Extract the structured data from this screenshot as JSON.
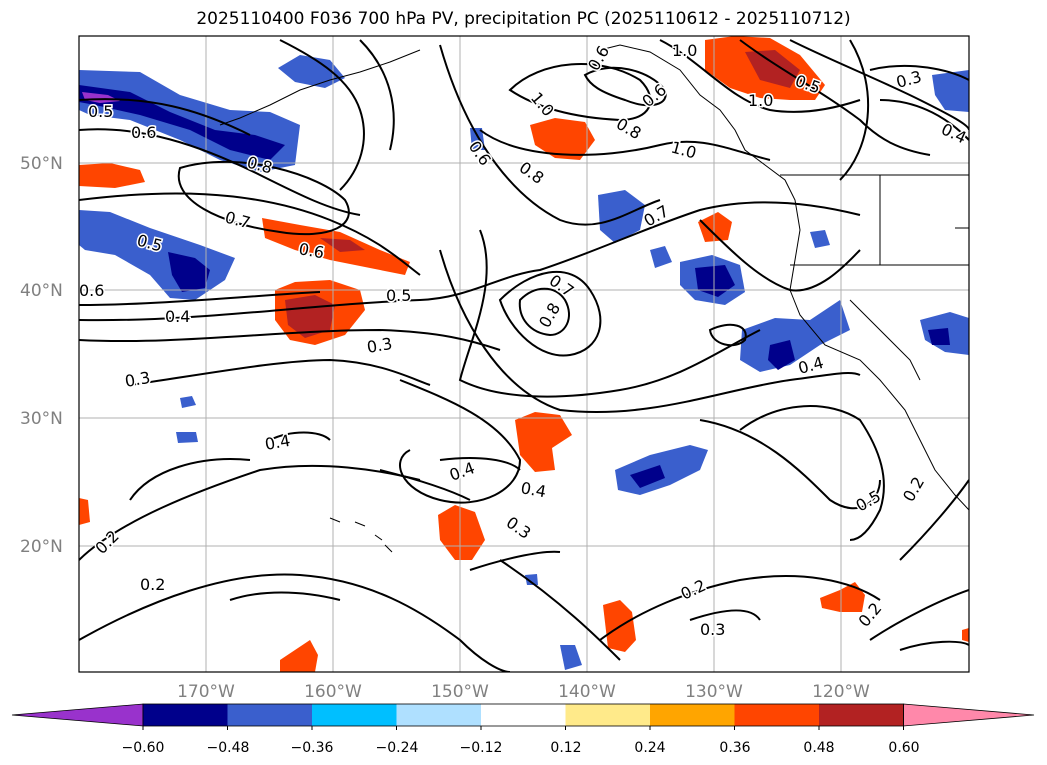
{
  "title": "2025110400 F036 700 hPa PV, precipitation PC (2025110612 - 2025110712)",
  "map": {
    "lat_labels": [
      "50°N",
      "40°N",
      "30°N",
      "20°N"
    ],
    "lon_labels": [
      "170°W",
      "160°W",
      "150°W",
      "140°W",
      "130°W",
      "120°W"
    ],
    "contour_labels": [
      {
        "text": "1.0"
      },
      {
        "text": "0.5"
      },
      {
        "text": "0.3"
      },
      {
        "text": "0.4"
      },
      {
        "text": "1.0"
      },
      {
        "text": "0.6"
      },
      {
        "text": "0.8"
      },
      {
        "text": "0.6"
      },
      {
        "text": "0.5"
      },
      {
        "text": "0.8"
      },
      {
        "text": "1.0"
      },
      {
        "text": "0.6"
      },
      {
        "text": "0.8"
      },
      {
        "text": "0.6"
      },
      {
        "text": "1.0"
      },
      {
        "text": "0.7"
      },
      {
        "text": "0.5"
      },
      {
        "text": "0.6"
      },
      {
        "text": "0.7"
      },
      {
        "text": "0.6"
      },
      {
        "text": "0.5"
      },
      {
        "text": "0.4"
      },
      {
        "text": "0.7"
      },
      {
        "text": "0.8"
      },
      {
        "text": "0.3"
      },
      {
        "text": "0.3"
      },
      {
        "text": "0.4"
      },
      {
        "text": "0.4"
      },
      {
        "text": "0.4"
      },
      {
        "text": "0.3"
      },
      {
        "text": "0.4"
      },
      {
        "text": "0.5"
      },
      {
        "text": "0.2"
      },
      {
        "text": "0.2"
      },
      {
        "text": "0.2"
      },
      {
        "text": "0.3"
      },
      {
        "text": "0.2"
      },
      {
        "text": "0.2"
      }
    ]
  },
  "colorbar": {
    "ticks": [
      "−0.60",
      "−0.48",
      "−0.36",
      "−0.24",
      "−0.12",
      "0.12",
      "0.24",
      "0.36",
      "0.48",
      "0.60"
    ],
    "colors": [
      "#9932cc",
      "#00008b",
      "#3a5fcd",
      "#00bfff",
      "#afe0ff",
      "#ffffff",
      "#ffea8a",
      "#ffa500",
      "#ff4500",
      "#b22222",
      "#ff88aa"
    ]
  }
}
